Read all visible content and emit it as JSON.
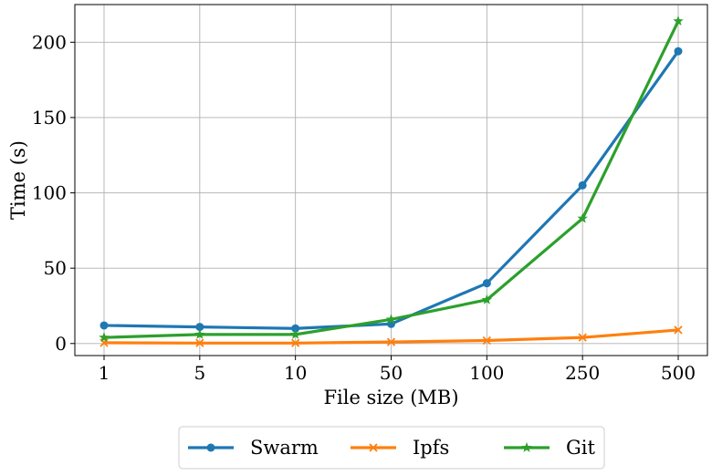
{
  "chart_data": {
    "type": "line",
    "categories": [
      "1",
      "5",
      "10",
      "50",
      "100",
      "250",
      "500"
    ],
    "xlabel": "File size (MB)",
    "ylabel": "Time (s)",
    "ylim": [
      -8,
      225
    ],
    "yticks": [
      0,
      50,
      100,
      150,
      200
    ],
    "grid": true,
    "legend_position": "bottom-center",
    "series": [
      {
        "name": "Swarm",
        "color": "#1f77b4",
        "marker": "circle",
        "values": [
          12,
          11,
          10,
          13,
          40,
          105,
          194
        ]
      },
      {
        "name": "Ipfs",
        "color": "#ff7f0e",
        "marker": "x",
        "values": [
          0.5,
          0.3,
          0.3,
          1,
          2,
          4,
          9
        ]
      },
      {
        "name": "Git",
        "color": "#2ca02c",
        "marker": "star",
        "values": [
          4,
          6,
          6,
          16,
          29,
          83,
          214
        ]
      }
    ]
  }
}
